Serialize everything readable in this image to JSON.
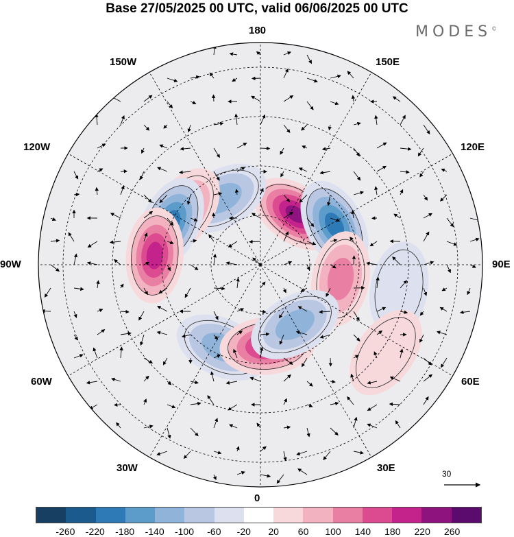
{
  "title": "Base 27/05/2025 00 UTC, valid 06/06/2025 00 UTC",
  "brand": {
    "text": "MODES",
    "mark": "©"
  },
  "longitude_labels": {
    "l180": "180",
    "l150e": "150E",
    "l120e": "120E",
    "l90e": "90E",
    "l60e": "60E",
    "l30e": "30E",
    "l0": "0",
    "l30w": "30W",
    "l60w": "60W",
    "l90w": "90W",
    "l120w": "120W",
    "l150w": "150W"
  },
  "vector_scale_label": "30",
  "colorbar": {
    "ticks": [
      "-260",
      "-220",
      "-180",
      "-140",
      "-100",
      "-60",
      "-20",
      "20",
      "60",
      "100",
      "140",
      "180",
      "220",
      "260"
    ],
    "colors": [
      "#173f62",
      "#1a5a8d",
      "#2e7ab7",
      "#5b9ccb",
      "#8fb3d9",
      "#b9c7e3",
      "#dde0ef",
      "#ffffff",
      "#f7d9dc",
      "#f2b2bf",
      "#ea7fa4",
      "#dc4a8f",
      "#c3238a",
      "#8e137f",
      "#5b0b6e"
    ]
  },
  "anomalies": [
    {
      "lon": 145,
      "colat": 25,
      "sign": 1,
      "level": 6
    },
    {
      "lon": 118,
      "colat": 34,
      "sign": -1,
      "level": 5
    },
    {
      "lon": 80,
      "colat": 33,
      "sign": 1,
      "level": 3
    },
    {
      "lon": -150,
      "colat": 31,
      "sign": -1,
      "level": 3
    },
    {
      "lon": -125,
      "colat": 38,
      "sign": 1,
      "level": 3
    },
    {
      "lon": -115,
      "colat": 40,
      "sign": -1,
      "level": 5
    },
    {
      "lon": -95,
      "colat": 43,
      "sign": 1,
      "level": 5
    },
    {
      "lon": -25,
      "colat": 37,
      "sign": -1,
      "level": 3
    },
    {
      "lon": 5,
      "colat": 33,
      "sign": 1,
      "level": 5
    },
    {
      "lon": 30,
      "colat": 28,
      "sign": -1,
      "level": 3
    },
    {
      "lon": 80,
      "colat": 57,
      "sign": -1,
      "level": 1
    },
    {
      "lon": 55,
      "colat": 62,
      "sign": 1,
      "level": 1
    }
  ]
}
